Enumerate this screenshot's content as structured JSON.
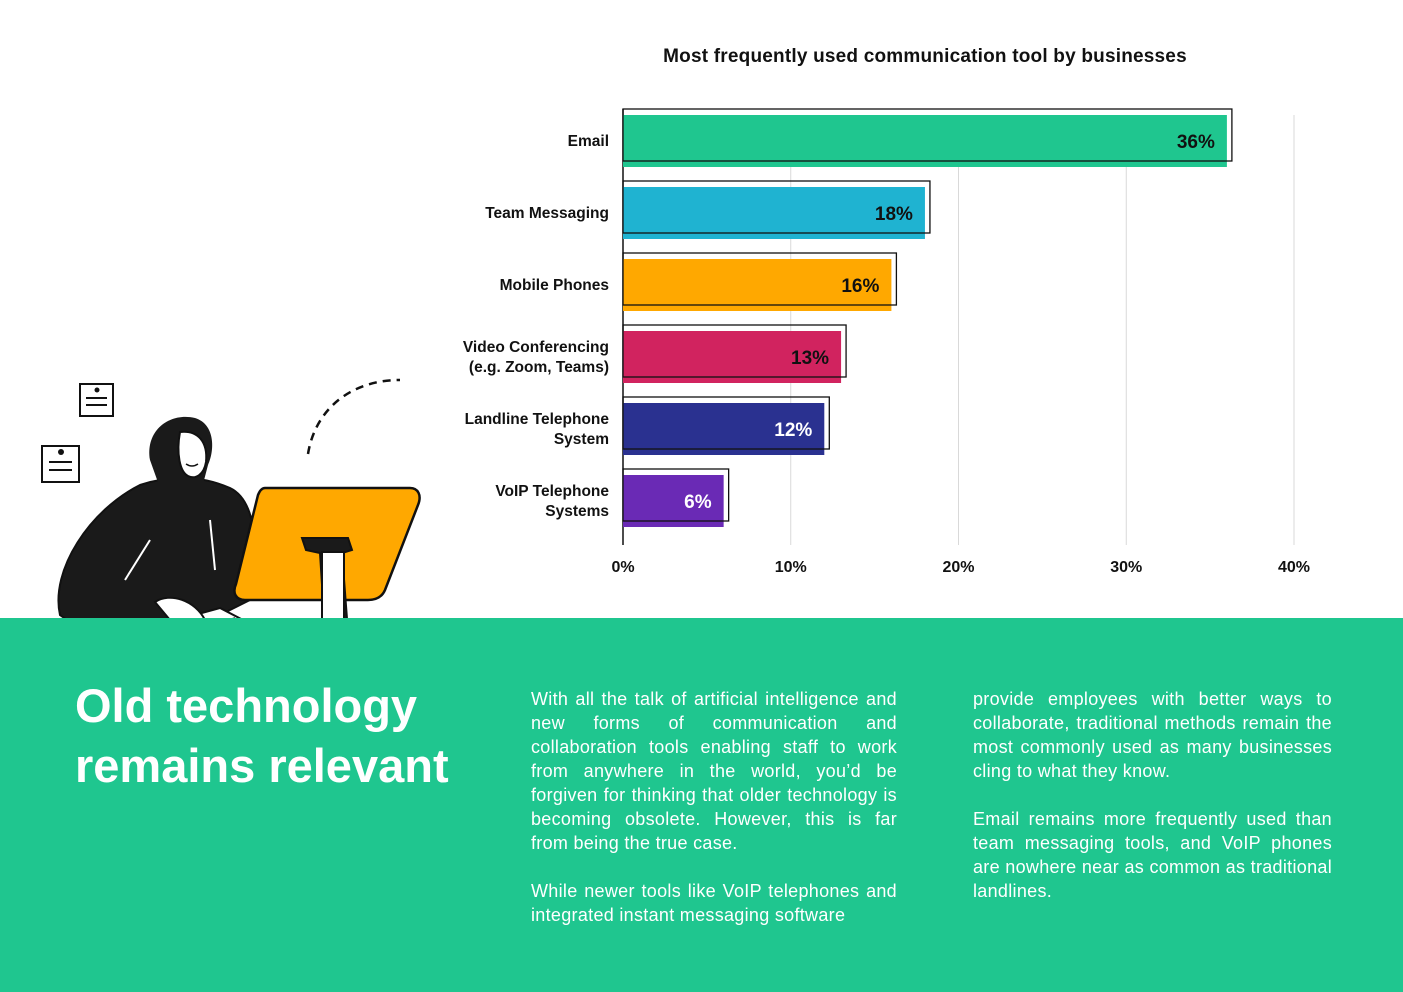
{
  "chart_data": {
    "type": "bar",
    "orientation": "horizontal",
    "title": "Most frequently used communication tool by businesses",
    "categories": [
      "Email",
      "Team Messaging",
      "Mobile Phones",
      "Video Conferencing\n(e.g. Zoom, Teams)",
      "Landline Telephone\nSystem",
      "VoIP Telephone\nSystems"
    ],
    "values": [
      36,
      18,
      16,
      13,
      12,
      6
    ],
    "value_labels": [
      "36%",
      "18%",
      "16%",
      "13%",
      "12%",
      "6%"
    ],
    "colors": [
      "#1fc68f",
      "#1fb3d1",
      "#ffa800",
      "#d1235f",
      "#2a3190",
      "#6a2ab5"
    ],
    "label_colors": [
      "#111111",
      "#111111",
      "#111111",
      "#111111",
      "#ffffff",
      "#ffffff"
    ],
    "xlim": [
      0,
      40
    ],
    "xticks": [
      0,
      10,
      20,
      30,
      40
    ],
    "xtick_labels": [
      "0%",
      "10%",
      "20%",
      "30%",
      "40%"
    ],
    "grid": true,
    "xlabel": "",
    "ylabel": ""
  },
  "text": {
    "headline": "Old technology remains relevant",
    "col_left_p1": "With all the talk of artificial intelligence and new forms of communication and collaboration tools enabling staff to work from anywhere in the world, you’d be forgiven for thinking that older technology is becoming obsolete. However, this is far from being the true case.",
    "col_left_p2": "While newer tools like VoIP telephones and integrated instant messaging software",
    "col_right_p1": "provide employees with better ways to collaborate, traditional methods remain the most commonly used as many businesses cling to what they know.",
    "col_right_p2": "Email remains more frequently used than team messaging tools, and VoIP phones are nowhere near as common as traditional landlines."
  },
  "illustration": {
    "icon": "woman-at-computer-illustration",
    "monitor_color": "#ffa800"
  }
}
